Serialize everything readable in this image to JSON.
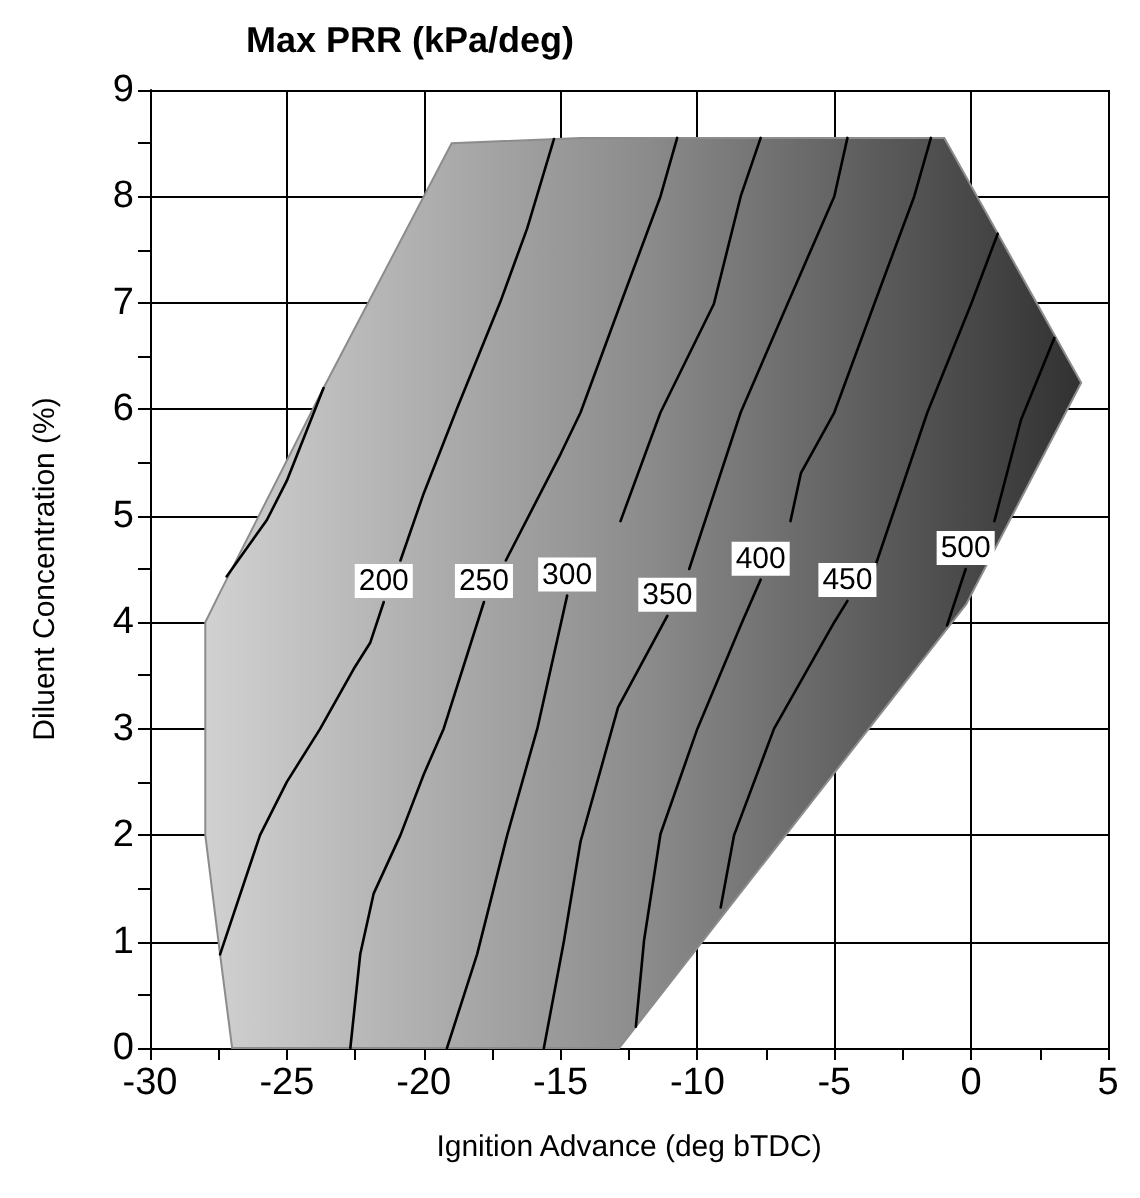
{
  "chart_data": {
    "type": "line",
    "title": "Max PRR (kPa/deg)",
    "xlabel": "Ignition Advance (deg bTDC)",
    "ylabel": "Diluent Concentration (%)",
    "xlim": [
      -30,
      5
    ],
    "ylim": [
      0,
      9
    ],
    "xticks": [
      -30,
      {
        "value": -27.5,
        "label": null
      },
      -25,
      {
        "value": -22.5,
        "label": null
      },
      -20,
      {
        "value": -17.5,
        "label": null
      },
      -15,
      {
        "value": -12.5,
        "label": null
      },
      -10,
      {
        "value": -7.5,
        "label": null
      },
      -5,
      {
        "value": -2.5,
        "label": null
      },
      0,
      {
        "value": 2.5,
        "label": null
      },
      5
    ],
    "yticks": [
      0,
      {
        "value": 0.5,
        "label": null
      },
      1,
      {
        "value": 1.5,
        "label": null
      },
      2,
      {
        "value": 2.5,
        "label": null
      },
      3,
      {
        "value": 3.5,
        "label": null
      },
      4,
      {
        "value": 4.5,
        "label": null
      },
      5,
      {
        "value": 5.5,
        "label": null
      },
      6,
      {
        "value": 6.5,
        "label": null
      },
      7,
      {
        "value": 7.5,
        "label": null
      },
      8,
      {
        "value": 8.5,
        "label": null
      },
      9
    ],
    "grid": true,
    "legend": false,
    "marker": "none",
    "line_style": "solid",
    "series": [
      {
        "type": "area",
        "color": "#8c8c8c",
        "x": [
          -27,
          -27.44,
          -27.98,
          -27.98,
          -27.44,
          -23.66,
          -18.98,
          -14.27,
          -0.98,
          4.02,
          -0.18,
          -12.86,
          -27
        ],
        "values": [
          0,
          0.88,
          2,
          4,
          4.28,
          6.2,
          8.5,
          8.55,
          8.55,
          6.25,
          4.17,
          0,
          0
        ]
      },
      {
        "color": "#000000",
        "x": [
          -27.2,
          -25.73,
          -25,
          -23.66
        ],
        "values": [
          4.43,
          4.96,
          5.33,
          6.2
        ]
      },
      {
        "name": "200",
        "color": "#000000",
        "x": [
          -27.44,
          -25.98,
          -25,
          -23.78,
          -22.56,
          -21.95,
          -21.46,
          null,
          -20.85,
          -20,
          -18.78,
          -17.2,
          -16.22,
          -15.24
        ],
        "values": [
          0.88,
          2,
          2.5,
          3,
          3.56,
          3.81,
          4.19,
          null,
          4.58,
          5.21,
          6.01,
          7.01,
          7.7,
          8.54
        ]
      },
      {
        "name": "250",
        "color": "#000000",
        "x": [
          -22.68,
          -22.32,
          -21.83,
          -20.85,
          -20,
          -19.27,
          -17.8,
          null,
          -17,
          -15,
          -14.27,
          -12.81,
          -11.35,
          -10.74
        ],
        "values": [
          0,
          0.88,
          1.45,
          2,
          2.57,
          3,
          4.19,
          null,
          4.58,
          5.58,
          5.97,
          6.99,
          8,
          8.55
        ]
      },
      {
        "name": "300",
        "color": "#000000",
        "x": [
          -19.15,
          -18.05,
          -16.95,
          -15.85,
          -14.76,
          null,
          -12.81,
          -11.35,
          -9.4,
          -8.42,
          -7.69
        ],
        "values": [
          0,
          0.88,
          2,
          3,
          4.25,
          null,
          4.95,
          5.97,
          6.99,
          8,
          8.55
        ]
      },
      {
        "name": "350",
        "color": "#000000",
        "x": [
          -15.61,
          -14.88,
          -14.27,
          -13.66,
          -12.9,
          -11.1,
          null,
          -10.3,
          -8.42,
          -6.71,
          -5,
          -4.52
        ],
        "values": [
          0,
          1,
          1.94,
          2.5,
          3.2,
          4.06,
          null,
          4.5,
          5.97,
          6.99,
          8,
          8.55
        ]
      },
      {
        "name": "400",
        "color": "#000000",
        "x": [
          -12.25,
          -11.95,
          -11.35,
          -10,
          -8.42,
          -7.69,
          null,
          -6.6,
          -6.22,
          -5,
          -3.54,
          -2.08,
          -1.47
        ],
        "values": [
          0.2,
          1.01,
          2.01,
          3,
          3.97,
          4.4,
          null,
          4.95,
          5.4,
          5.97,
          6.99,
          8,
          8.55
        ]
      },
      {
        "name": "450",
        "color": "#000000",
        "x": [
          -9.15,
          -8.66,
          -7.2,
          -5,
          -4.52,
          null,
          -3.54,
          -1.6,
          0,
          0.97
        ],
        "values": [
          1.32,
          2,
          3,
          4,
          4.2,
          null,
          4.5,
          5.97,
          6.99,
          7.65
        ]
      },
      {
        "name": "500",
        "color": "#000000",
        "x": [
          -0.88,
          -0.2,
          null,
          0.85,
          1.82,
          3.04
        ],
        "values": [
          3.97,
          4.5,
          null,
          4.95,
          5.9,
          6.67
        ]
      }
    ]
  }
}
